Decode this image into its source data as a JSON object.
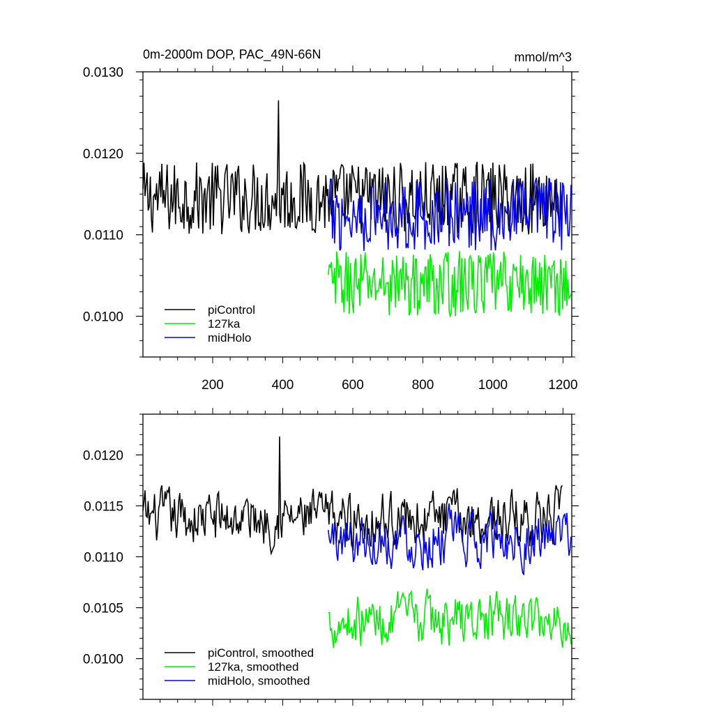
{
  "chart_data": [
    {
      "type": "line",
      "title": "0m-2000m DOP, PAC_49N-66N",
      "units": "mmol/m^3",
      "xlim": [
        1,
        1225
      ],
      "ylim": [
        0.0095,
        0.013
      ],
      "x_ticks": [
        200,
        400,
        600,
        800,
        1000,
        1200
      ],
      "y_ticks": [
        0.01,
        0.011,
        0.012,
        0.013
      ],
      "y_tick_labels": [
        "0.0100",
        "0.0110",
        "0.0120",
        "0.0130"
      ],
      "legend_position": "bottom-left",
      "series": [
        {
          "name": "piControl",
          "color": "#000000",
          "x_start": 1,
          "x_end": 1200,
          "mean": 0.01145,
          "amplitude": 0.00045,
          "spike": {
            "x": 388,
            "y": 0.01265
          }
        },
        {
          "name": "127ka",
          "color": "#00ee00",
          "x_start": 530,
          "x_end": 1225,
          "mean": 0.0104,
          "amplitude": 0.0004
        },
        {
          "name": "midHolo",
          "color": "#0000ff",
          "x_start": 530,
          "x_end": 1225,
          "mean": 0.01125,
          "amplitude": 0.00045
        }
      ]
    },
    {
      "type": "line",
      "xlim": [
        1,
        1225
      ],
      "ylim": [
        0.0096,
        0.0124
      ],
      "x_ticks": [
        200,
        400,
        600,
        800,
        1000,
        1200
      ],
      "y_ticks": [
        0.01,
        0.0105,
        0.011,
        0.0115,
        0.012
      ],
      "y_tick_labels": [
        "0.0100",
        "0.0105",
        "0.0110",
        "0.0115",
        "0.0120"
      ],
      "legend_position": "bottom-left",
      "series": [
        {
          "name": "piControl, smoothed",
          "color": "#000000",
          "x_start": 1,
          "x_end": 1200,
          "mean": 0.01138,
          "amplitude": 0.0003,
          "spike": {
            "x": 390,
            "y": 0.01218
          }
        },
        {
          "name": "127ka, smoothed",
          "color": "#00ee00",
          "x_start": 530,
          "x_end": 1225,
          "mean": 0.01038,
          "amplitude": 0.00028
        },
        {
          "name": "midHolo, smoothed",
          "color": "#0000ff",
          "x_start": 530,
          "x_end": 1225,
          "mean": 0.01118,
          "amplitude": 0.0003
        }
      ]
    }
  ]
}
